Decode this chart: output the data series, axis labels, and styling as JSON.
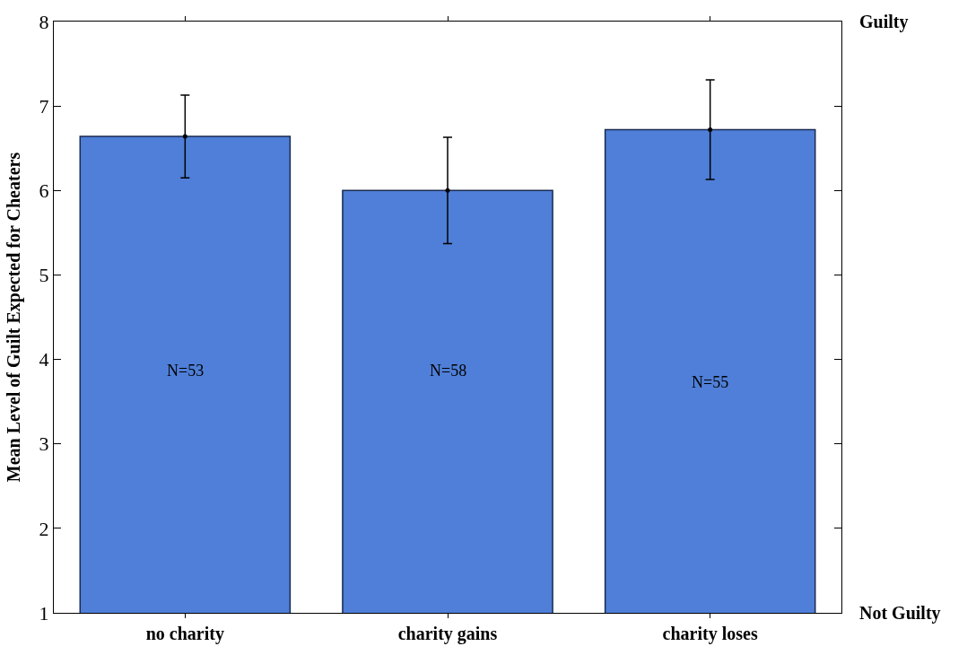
{
  "chart_data": {
    "type": "bar",
    "ylabel": "Mean Level of Guilt Expected for Cheaters",
    "categories": [
      "no charity",
      "charity gains",
      "charity loses"
    ],
    "values": [
      6.64,
      6.0,
      6.72
    ],
    "errors": [
      0.49,
      0.63,
      0.59
    ],
    "color": "#4f7fd8",
    "ylim": [
      1,
      8
    ],
    "yticks": [
      1,
      2,
      3,
      4,
      5,
      6,
      7,
      8
    ],
    "legend": false,
    "annotations": [
      "N=53",
      "N=58",
      "N=55",
      "Guilty",
      "Not Guilty"
    ]
  }
}
